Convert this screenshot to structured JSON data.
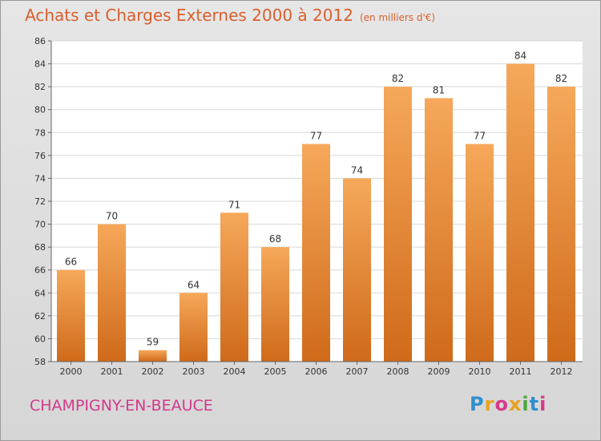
{
  "title": {
    "main": "Achats et Charges Externes 2000 à 2012",
    "sub": "(en milliers d'€)"
  },
  "city": "CHAMPIGNY-EN-BEAUCE",
  "logo": {
    "letters": [
      "P",
      "r",
      "o",
      "x",
      "i",
      "t",
      "i"
    ],
    "colors": [
      "#2f8fd0",
      "#e8a21e",
      "#d83a8a",
      "#e8a21e",
      "#4aa83a",
      "#2f8fd0",
      "#d83a8a"
    ]
  },
  "colors": {
    "bar_top": "#f6a85a",
    "bar_bottom": "#cf6a1a",
    "title": "#d95f2e",
    "city": "#d23a8a"
  },
  "chart_data": {
    "type": "bar",
    "categories": [
      "2000",
      "2001",
      "2002",
      "2003",
      "2004",
      "2005",
      "2006",
      "2007",
      "2008",
      "2009",
      "2010",
      "2011",
      "2012"
    ],
    "values": [
      66,
      70,
      59,
      64,
      71,
      68,
      77,
      74,
      82,
      81,
      77,
      84,
      82
    ],
    "title": "Achats et Charges Externes 2000 à 2012",
    "subtitle": "(en milliers d'€)",
    "xlabel": "",
    "ylabel": "",
    "ylim": [
      58,
      86
    ],
    "yticks": [
      58,
      60,
      62,
      64,
      66,
      68,
      70,
      72,
      74,
      76,
      78,
      80,
      82,
      84,
      86
    ],
    "grid": true,
    "legend": "none"
  }
}
